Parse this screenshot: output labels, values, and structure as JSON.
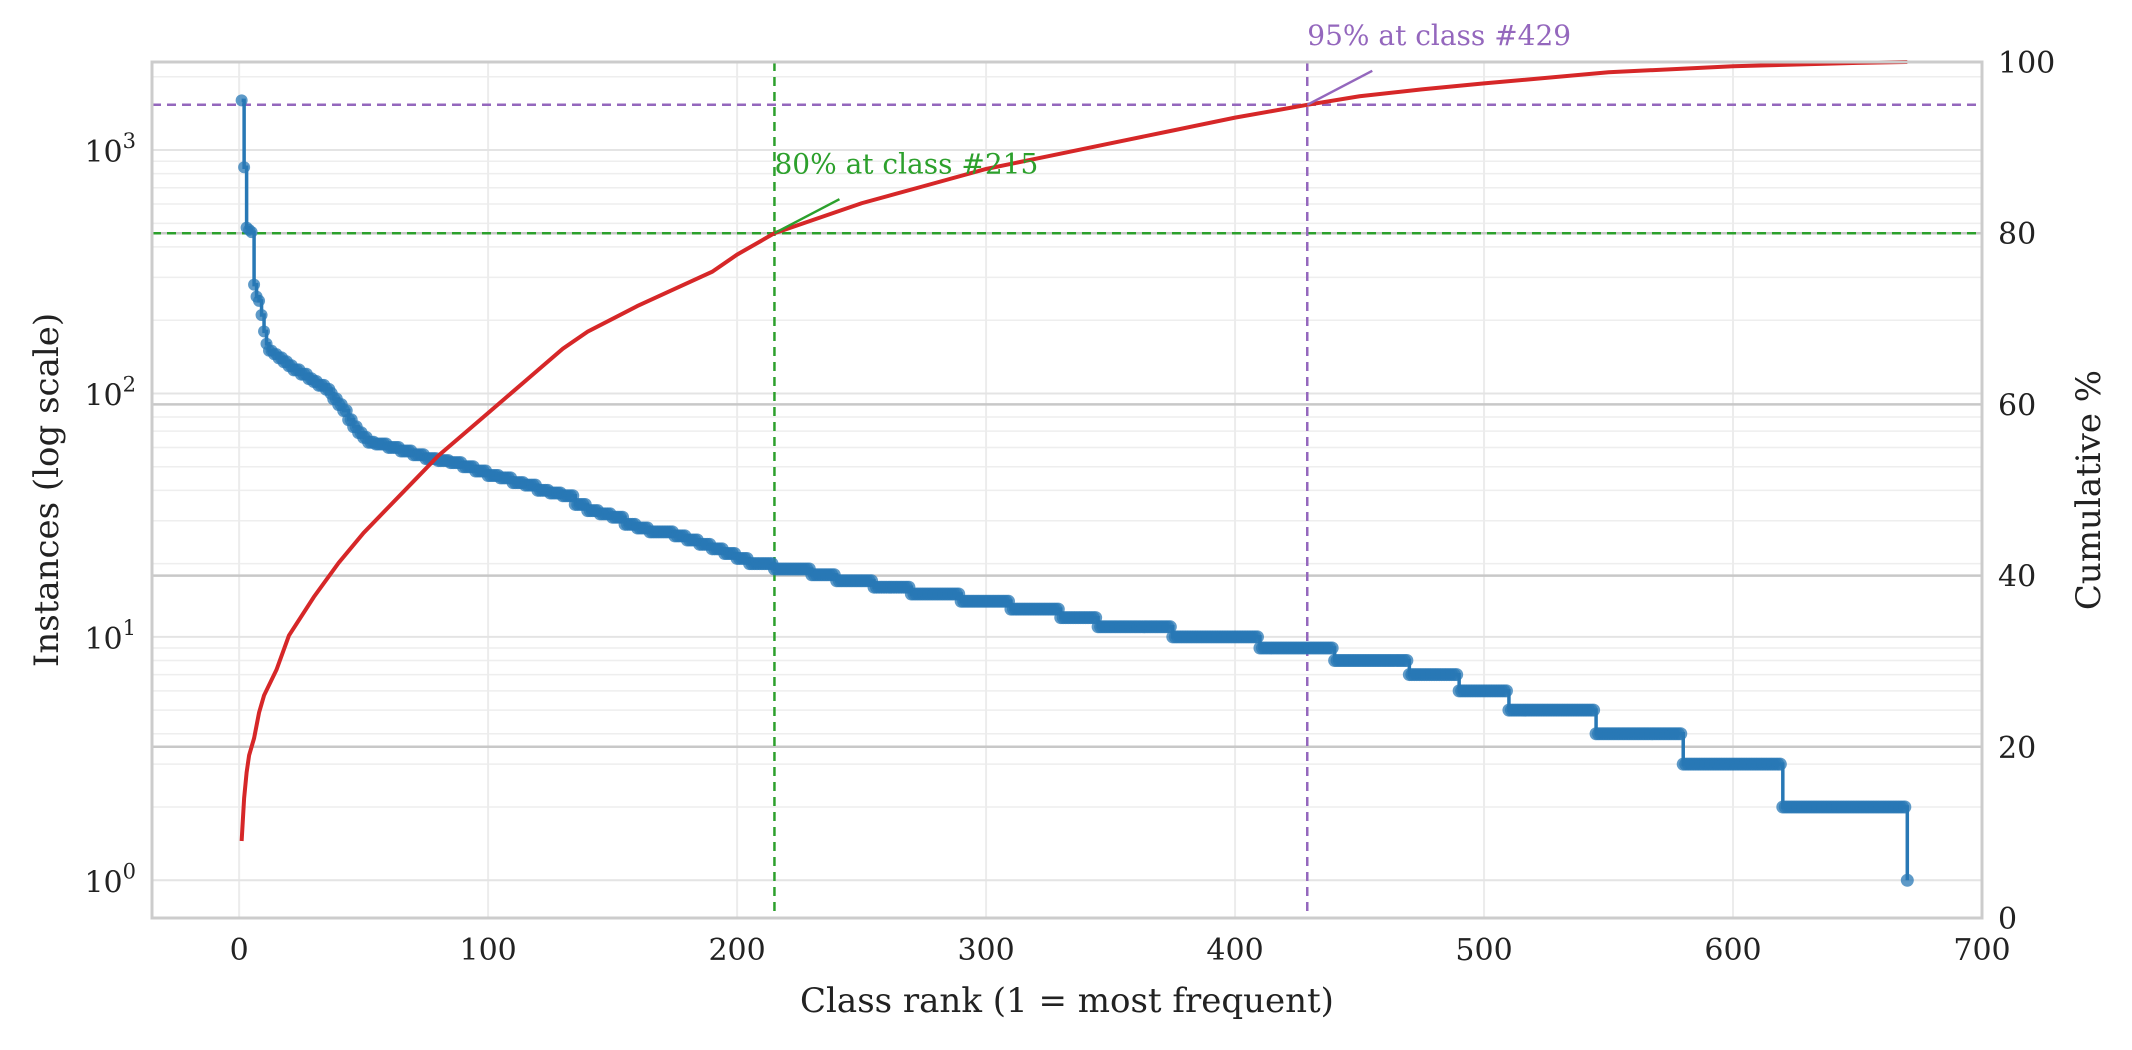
{
  "chart_data": {
    "type": "line",
    "xlabel": "Class rank (1 = most frequent)",
    "ylabel": "Instances (log scale)",
    "y2label": "Cumulative %",
    "xlim": [
      -35,
      700
    ],
    "ylim": [
      0.7,
      2300
    ],
    "y2lim": [
      0,
      100
    ],
    "yscale": "log",
    "grid": true,
    "x_ticks": [
      "0",
      "100",
      "200",
      "300",
      "400",
      "500",
      "600",
      "700"
    ],
    "x_tick_values": [
      0,
      100,
      200,
      300,
      400,
      500,
      600,
      700
    ],
    "y_ticks": [
      {
        "base": "10",
        "exp": "0",
        "value": 1
      },
      {
        "base": "10",
        "exp": "1",
        "value": 10
      },
      {
        "base": "10",
        "exp": "2",
        "value": 100
      },
      {
        "base": "10",
        "exp": "3",
        "value": 1000
      }
    ],
    "y2_ticks": [
      "0",
      "20",
      "40",
      "60",
      "80",
      "100"
    ],
    "y2_tick_values": [
      0,
      20,
      40,
      60,
      80,
      100
    ],
    "colors": {
      "instances": "#2878b5",
      "cumulative": "#d62728",
      "p80": "#2ca02c",
      "p95": "#9467bd",
      "grid_major": "#c8c8c8",
      "grid_minor": "#eeeeee",
      "frame": "#cccccc"
    },
    "series": [
      {
        "axis": "left",
        "style": "line-with-markers",
        "points": [
          [
            1,
            1600
          ],
          [
            2,
            850
          ],
          [
            3,
            480
          ],
          [
            4,
            470
          ],
          [
            5,
            460
          ],
          [
            6,
            280
          ],
          [
            7,
            250
          ],
          [
            8,
            240
          ],
          [
            9,
            210
          ],
          [
            10,
            180
          ],
          [
            11,
            160
          ],
          [
            12,
            150
          ],
          [
            14,
            145
          ],
          [
            16,
            140
          ],
          [
            18,
            135
          ],
          [
            20,
            130
          ],
          [
            22,
            125
          ],
          [
            25,
            120
          ],
          [
            28,
            115
          ],
          [
            30,
            112
          ],
          [
            32,
            108
          ],
          [
            35,
            104
          ],
          [
            37,
            100
          ],
          [
            38,
            95
          ],
          [
            40,
            90
          ],
          [
            42,
            85
          ],
          [
            44,
            78
          ],
          [
            46,
            73
          ],
          [
            48,
            69
          ],
          [
            50,
            66
          ],
          [
            52,
            63
          ],
          [
            55,
            62
          ],
          [
            60,
            60
          ],
          [
            65,
            58
          ],
          [
            70,
            56
          ],
          [
            75,
            54
          ],
          [
            80,
            53
          ],
          [
            85,
            52
          ],
          [
            90,
            50
          ],
          [
            95,
            48
          ],
          [
            100,
            46
          ],
          [
            105,
            45
          ],
          [
            110,
            43
          ],
          [
            115,
            42
          ],
          [
            120,
            40
          ],
          [
            125,
            39
          ],
          [
            130,
            38
          ],
          [
            135,
            35
          ],
          [
            140,
            33
          ],
          [
            145,
            32
          ],
          [
            150,
            31
          ],
          [
            155,
            29
          ],
          [
            160,
            28
          ],
          [
            165,
            27
          ],
          [
            170,
            27
          ],
          [
            175,
            26
          ],
          [
            180,
            25
          ],
          [
            185,
            24
          ],
          [
            190,
            23
          ],
          [
            195,
            22
          ],
          [
            200,
            21
          ],
          [
            205,
            20
          ],
          [
            210,
            20
          ],
          [
            215,
            19
          ],
          [
            230,
            18
          ],
          [
            240,
            17
          ],
          [
            255,
            16
          ],
          [
            270,
            15
          ],
          [
            290,
            14
          ],
          [
            310,
            13
          ],
          [
            330,
            12
          ],
          [
            345,
            11
          ],
          [
            375,
            10
          ],
          [
            410,
            9
          ],
          [
            440,
            8
          ],
          [
            470,
            7
          ],
          [
            490,
            6
          ],
          [
            510,
            5
          ],
          [
            545,
            4
          ],
          [
            580,
            3
          ],
          [
            620,
            2
          ],
          [
            670,
            1
          ]
        ]
      },
      {
        "axis": "right",
        "style": "line",
        "points": [
          [
            1,
            9
          ],
          [
            2,
            14
          ],
          [
            3,
            17
          ],
          [
            4,
            19
          ],
          [
            6,
            21
          ],
          [
            8,
            24
          ],
          [
            10,
            26
          ],
          [
            15,
            29
          ],
          [
            20,
            33
          ],
          [
            30,
            37.5
          ],
          [
            40,
            41.5
          ],
          [
            50,
            45
          ],
          [
            60,
            48
          ],
          [
            70,
            51
          ],
          [
            80,
            54
          ],
          [
            90,
            56.5
          ],
          [
            100,
            59
          ],
          [
            110,
            61.5
          ],
          [
            120,
            64
          ],
          [
            130,
            66.5
          ],
          [
            140,
            68.5
          ],
          [
            150,
            70
          ],
          [
            160,
            71.5
          ],
          [
            175,
            73.5
          ],
          [
            190,
            75.5
          ],
          [
            200,
            77.5
          ],
          [
            215,
            80
          ],
          [
            230,
            81.5
          ],
          [
            250,
            83.5
          ],
          [
            275,
            85.5
          ],
          [
            300,
            87.5
          ],
          [
            325,
            89
          ],
          [
            350,
            90.5
          ],
          [
            375,
            92
          ],
          [
            400,
            93.5
          ],
          [
            429,
            95
          ],
          [
            450,
            96
          ],
          [
            475,
            96.8
          ],
          [
            500,
            97.5
          ],
          [
            550,
            98.8
          ],
          [
            600,
            99.5
          ],
          [
            650,
            99.9
          ],
          [
            670,
            100
          ]
        ]
      }
    ],
    "reference_lines": [
      {
        "kind": "horizontal",
        "axis": "right",
        "value": 80,
        "color_key": "p80"
      },
      {
        "kind": "vertical",
        "value": 215,
        "color_key": "p80"
      },
      {
        "kind": "horizontal",
        "axis": "right",
        "value": 95,
        "color_key": "p95"
      },
      {
        "kind": "vertical",
        "value": 429,
        "color_key": "p95"
      }
    ],
    "annotations": [
      {
        "text": "80% at class #215",
        "x": 215,
        "y": 80,
        "text_x": 215,
        "text_y": 87,
        "color_key": "p80"
      },
      {
        "text": "95% at class #429",
        "x": 429,
        "y": 95,
        "text_x": 429,
        "text_y": 102,
        "color_key": "p95"
      }
    ]
  }
}
